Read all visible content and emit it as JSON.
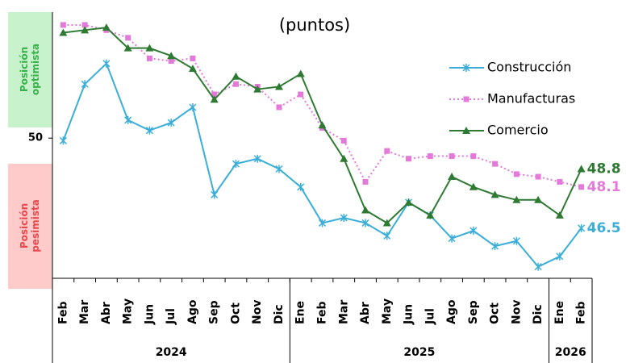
{
  "chart_data": {
    "type": "line",
    "subtitle": "(puntos)",
    "categories": [
      "Feb",
      "Mar",
      "Abr",
      "May",
      "Jun",
      "Jul",
      "Ago",
      "Sep",
      "Oct",
      "Nov",
      "Dic",
      "Ene",
      "Feb",
      "Mar",
      "Abr",
      "May",
      "Jun",
      "Jul",
      "Ago",
      "Sep",
      "Oct",
      "Nov",
      "Dic",
      "Ene",
      "Feb"
    ],
    "groups": [
      {
        "label": "2024",
        "span": 11
      },
      {
        "label": "2025",
        "span": 12
      },
      {
        "label": "2026",
        "span": 2
      }
    ],
    "series": [
      {
        "name": "Construcción",
        "color": "#3aaed8",
        "marker": "star",
        "line_style": "solid",
        "values": [
          49.9,
          52.1,
          52.9,
          50.7,
          50.3,
          50.6,
          51.2,
          47.8,
          49.0,
          49.2,
          48.8,
          48.1,
          46.7,
          46.9,
          46.7,
          46.2,
          47.5,
          47.0,
          46.1,
          46.4,
          45.8,
          46.0,
          45.0,
          45.4,
          46.5
        ]
      },
      {
        "name": "Manufacturas",
        "color": "#e37ad9",
        "marker": "square",
        "line_style": "dotted",
        "values": [
          54.4,
          54.4,
          54.2,
          53.9,
          53.1,
          53.0,
          53.1,
          51.7,
          52.1,
          52.0,
          51.2,
          51.7,
          50.4,
          49.9,
          48.3,
          49.5,
          49.2,
          49.3,
          49.3,
          49.3,
          49.0,
          48.6,
          48.5,
          48.3,
          48.1
        ]
      },
      {
        "name": "Comercio",
        "color": "#2e7a32",
        "marker": "triangle",
        "line_style": "solid",
        "values": [
          54.1,
          54.2,
          54.3,
          53.5,
          53.5,
          53.2,
          52.7,
          51.5,
          52.4,
          51.9,
          52.0,
          52.5,
          50.5,
          49.2,
          47.2,
          46.7,
          47.5,
          47.0,
          48.5,
          48.1,
          47.8,
          47.6,
          47.6,
          47.0,
          48.8
        ]
      }
    ],
    "ylim": [
      44.55,
      54.9
    ],
    "yticks": [
      50
    ],
    "annotations": {
      "optimistic": [
        "Posición",
        "optimista"
      ],
      "pessimistic": [
        "Posición",
        "pesimista"
      ]
    },
    "end_labels": true,
    "legend": "upper right",
    "grid": false
  }
}
